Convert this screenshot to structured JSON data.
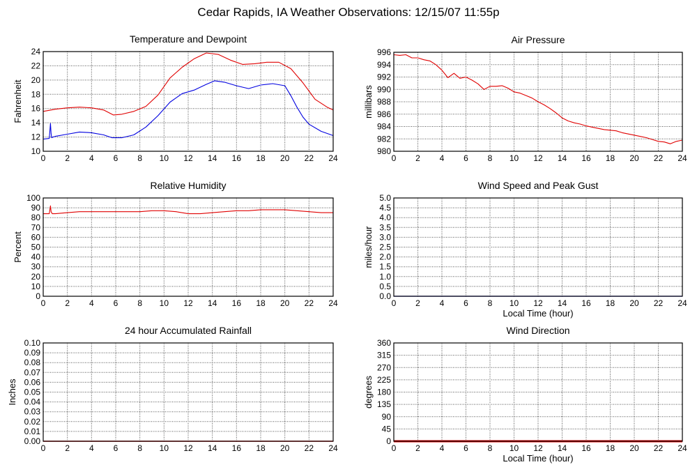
{
  "page": {
    "title": "Cedar Rapids, IA Weather Observations: 12/15/07 11:55p"
  },
  "chart_data": [
    {
      "id": "temp",
      "type": "line",
      "title": "Temperature and Dewpoint",
      "xlabel": "",
      "ylabel": "Fahrenheit",
      "xlim": [
        0,
        24
      ],
      "ylim": [
        10,
        24
      ],
      "xticks": [
        0,
        2,
        4,
        6,
        8,
        10,
        12,
        14,
        16,
        18,
        20,
        22,
        24
      ],
      "yticks": [
        10,
        12,
        14,
        16,
        18,
        20,
        22,
        24
      ],
      "grid": true,
      "series": [
        {
          "color": "#e00000",
          "x": [
            0,
            1,
            2,
            3,
            4,
            5,
            5.8,
            6.5,
            7.5,
            8.5,
            9.5,
            10.5,
            11.5,
            12.5,
            13.5,
            14.5,
            15.5,
            16.5,
            17.5,
            18.5,
            19.5,
            20.5,
            21.5,
            22.5,
            23.5,
            24
          ],
          "y": [
            15.6,
            15.9,
            16.1,
            16.2,
            16.1,
            15.8,
            15.1,
            15.2,
            15.6,
            16.3,
            17.9,
            20.3,
            21.8,
            23,
            23.8,
            23.6,
            22.8,
            22.2,
            22.3,
            22.5,
            22.5,
            21.6,
            19.6,
            17.3,
            16.2,
            15.8
          ]
        },
        {
          "color": "#0000e0",
          "x": [
            0,
            0.5,
            0.6,
            0.65,
            0.7,
            0.8,
            1,
            2,
            3,
            4,
            5,
            5.7,
            6.5,
            7.5,
            8.5,
            9.5,
            10.5,
            11.5,
            12.5,
            13.5,
            14.2,
            15,
            16,
            17,
            18,
            19,
            20,
            20.5,
            21,
            21.5,
            22,
            23,
            24
          ],
          "y": [
            11.7,
            11.8,
            13.9,
            12.5,
            11.9,
            12.0,
            12.1,
            12.4,
            12.7,
            12.6,
            12.3,
            11.9,
            11.9,
            12.3,
            13.4,
            15.0,
            16.9,
            18.1,
            18.6,
            19.4,
            19.9,
            19.7,
            19.2,
            18.8,
            19.3,
            19.5,
            19.2,
            17.8,
            16.2,
            14.8,
            13.8,
            12.8,
            12.2
          ]
        }
      ]
    },
    {
      "id": "press",
      "type": "line",
      "title": "Air Pressure",
      "xlabel": "",
      "ylabel": "millibars",
      "xlim": [
        0,
        24
      ],
      "ylim": [
        980,
        996
      ],
      "xticks": [
        0,
        2,
        4,
        6,
        8,
        10,
        12,
        14,
        16,
        18,
        20,
        22,
        24
      ],
      "yticks": [
        980,
        982,
        984,
        986,
        988,
        990,
        992,
        994,
        996
      ],
      "grid": true,
      "series": [
        {
          "color": "#e00000",
          "x": [
            0,
            0.5,
            1,
            1.5,
            2,
            2.5,
            3,
            3.5,
            4,
            4.5,
            5,
            5.5,
            6,
            6.5,
            7,
            7.5,
            8,
            8.5,
            9,
            9.5,
            10,
            10.5,
            11,
            11.5,
            12,
            12.5,
            13,
            13.5,
            14,
            14.5,
            15,
            15.5,
            16,
            16.5,
            17,
            17.5,
            18,
            18.5,
            19,
            19.5,
            20,
            20.5,
            21,
            21.5,
            22,
            22.5,
            23,
            23.5,
            24
          ],
          "y": [
            995.6,
            995.5,
            995.6,
            995.1,
            995.1,
            994.8,
            994.6,
            994.0,
            993.1,
            991.9,
            992.6,
            991.8,
            992.0,
            991.5,
            990.9,
            990.0,
            990.5,
            990.5,
            990.6,
            990.2,
            989.6,
            989.4,
            989.0,
            988.6,
            988.0,
            987.5,
            986.9,
            986.2,
            985.4,
            984.9,
            984.6,
            984.4,
            984.1,
            983.9,
            983.7,
            983.5,
            983.4,
            983.3,
            983.0,
            982.8,
            982.6,
            982.4,
            982.2,
            981.9,
            981.6,
            981.5,
            981.2,
            981.6,
            981.8
          ]
        }
      ]
    },
    {
      "id": "rh",
      "type": "line",
      "title": "Relative Humidity",
      "xlabel": "",
      "ylabel": "Percent",
      "xlim": [
        0,
        24
      ],
      "ylim": [
        0,
        100
      ],
      "xticks": [
        0,
        2,
        4,
        6,
        8,
        10,
        12,
        14,
        16,
        18,
        20,
        22,
        24
      ],
      "yticks": [
        0,
        10,
        20,
        30,
        40,
        50,
        60,
        70,
        80,
        90,
        100
      ],
      "grid": true,
      "series": [
        {
          "color": "#e00000",
          "x": [
            0,
            0.5,
            0.6,
            0.65,
            0.75,
            1,
            2,
            3,
            4,
            5,
            6,
            7,
            8,
            9,
            10,
            11,
            12,
            13,
            14,
            15,
            16,
            17,
            18,
            19,
            20,
            21,
            22,
            23,
            24
          ],
          "y": [
            84,
            84,
            92,
            86,
            84,
            84,
            85,
            86,
            86,
            86,
            86,
            86,
            86,
            87,
            87,
            86,
            84,
            84,
            85,
            86,
            87,
            87,
            88,
            88,
            88,
            87,
            86,
            85,
            85
          ]
        }
      ]
    },
    {
      "id": "wind",
      "type": "line",
      "title": "Wind Speed and Peak Gust",
      "xlabel": "Local Time (hour)",
      "ylabel": "miles/hour",
      "xlim": [
        0,
        24
      ],
      "ylim": [
        0,
        5
      ],
      "xticks": [
        0,
        2,
        4,
        6,
        8,
        10,
        12,
        14,
        16,
        18,
        20,
        22,
        24
      ],
      "yticks": [
        "0.0",
        "0.5",
        "1.0",
        "1.5",
        "2.0",
        "2.5",
        "3.0",
        "3.5",
        "4.0",
        "4.5",
        "5.0"
      ],
      "grid": true,
      "series": [
        {
          "color": "#0000e0",
          "x": [
            0,
            24
          ],
          "y": [
            0,
            0
          ],
          "width": 1.2
        }
      ]
    },
    {
      "id": "rain",
      "type": "line",
      "title": "24 hour Accumulated Rainfall",
      "xlabel": "",
      "ylabel": "Inches",
      "xlim": [
        0,
        24
      ],
      "ylim": [
        0,
        0.1
      ],
      "xticks": [
        0,
        2,
        4,
        6,
        8,
        10,
        12,
        14,
        16,
        18,
        20,
        22,
        24
      ],
      "yticks": [
        "0.00",
        "0.01",
        "0.02",
        "0.03",
        "0.04",
        "0.05",
        "0.06",
        "0.07",
        "0.08",
        "0.09",
        "0.10"
      ],
      "grid": true,
      "series": [
        {
          "color": "#e00000",
          "x": [
            0,
            24
          ],
          "y": [
            0,
            0
          ],
          "width": 1.5
        }
      ]
    },
    {
      "id": "dir",
      "type": "line",
      "title": "Wind Direction",
      "xlabel": "Local Time (hour)",
      "ylabel": "degrees",
      "xlim": [
        0,
        24
      ],
      "ylim": [
        0,
        360
      ],
      "xticks": [
        0,
        2,
        4,
        6,
        8,
        10,
        12,
        14,
        16,
        18,
        20,
        22,
        24
      ],
      "yticks": [
        0,
        45,
        90,
        135,
        180,
        225,
        270,
        315,
        360
      ],
      "grid": true,
      "series": [
        {
          "color": "#e00000",
          "x": [
            0,
            24
          ],
          "y": [
            0,
            0
          ],
          "width": 3
        }
      ]
    }
  ]
}
